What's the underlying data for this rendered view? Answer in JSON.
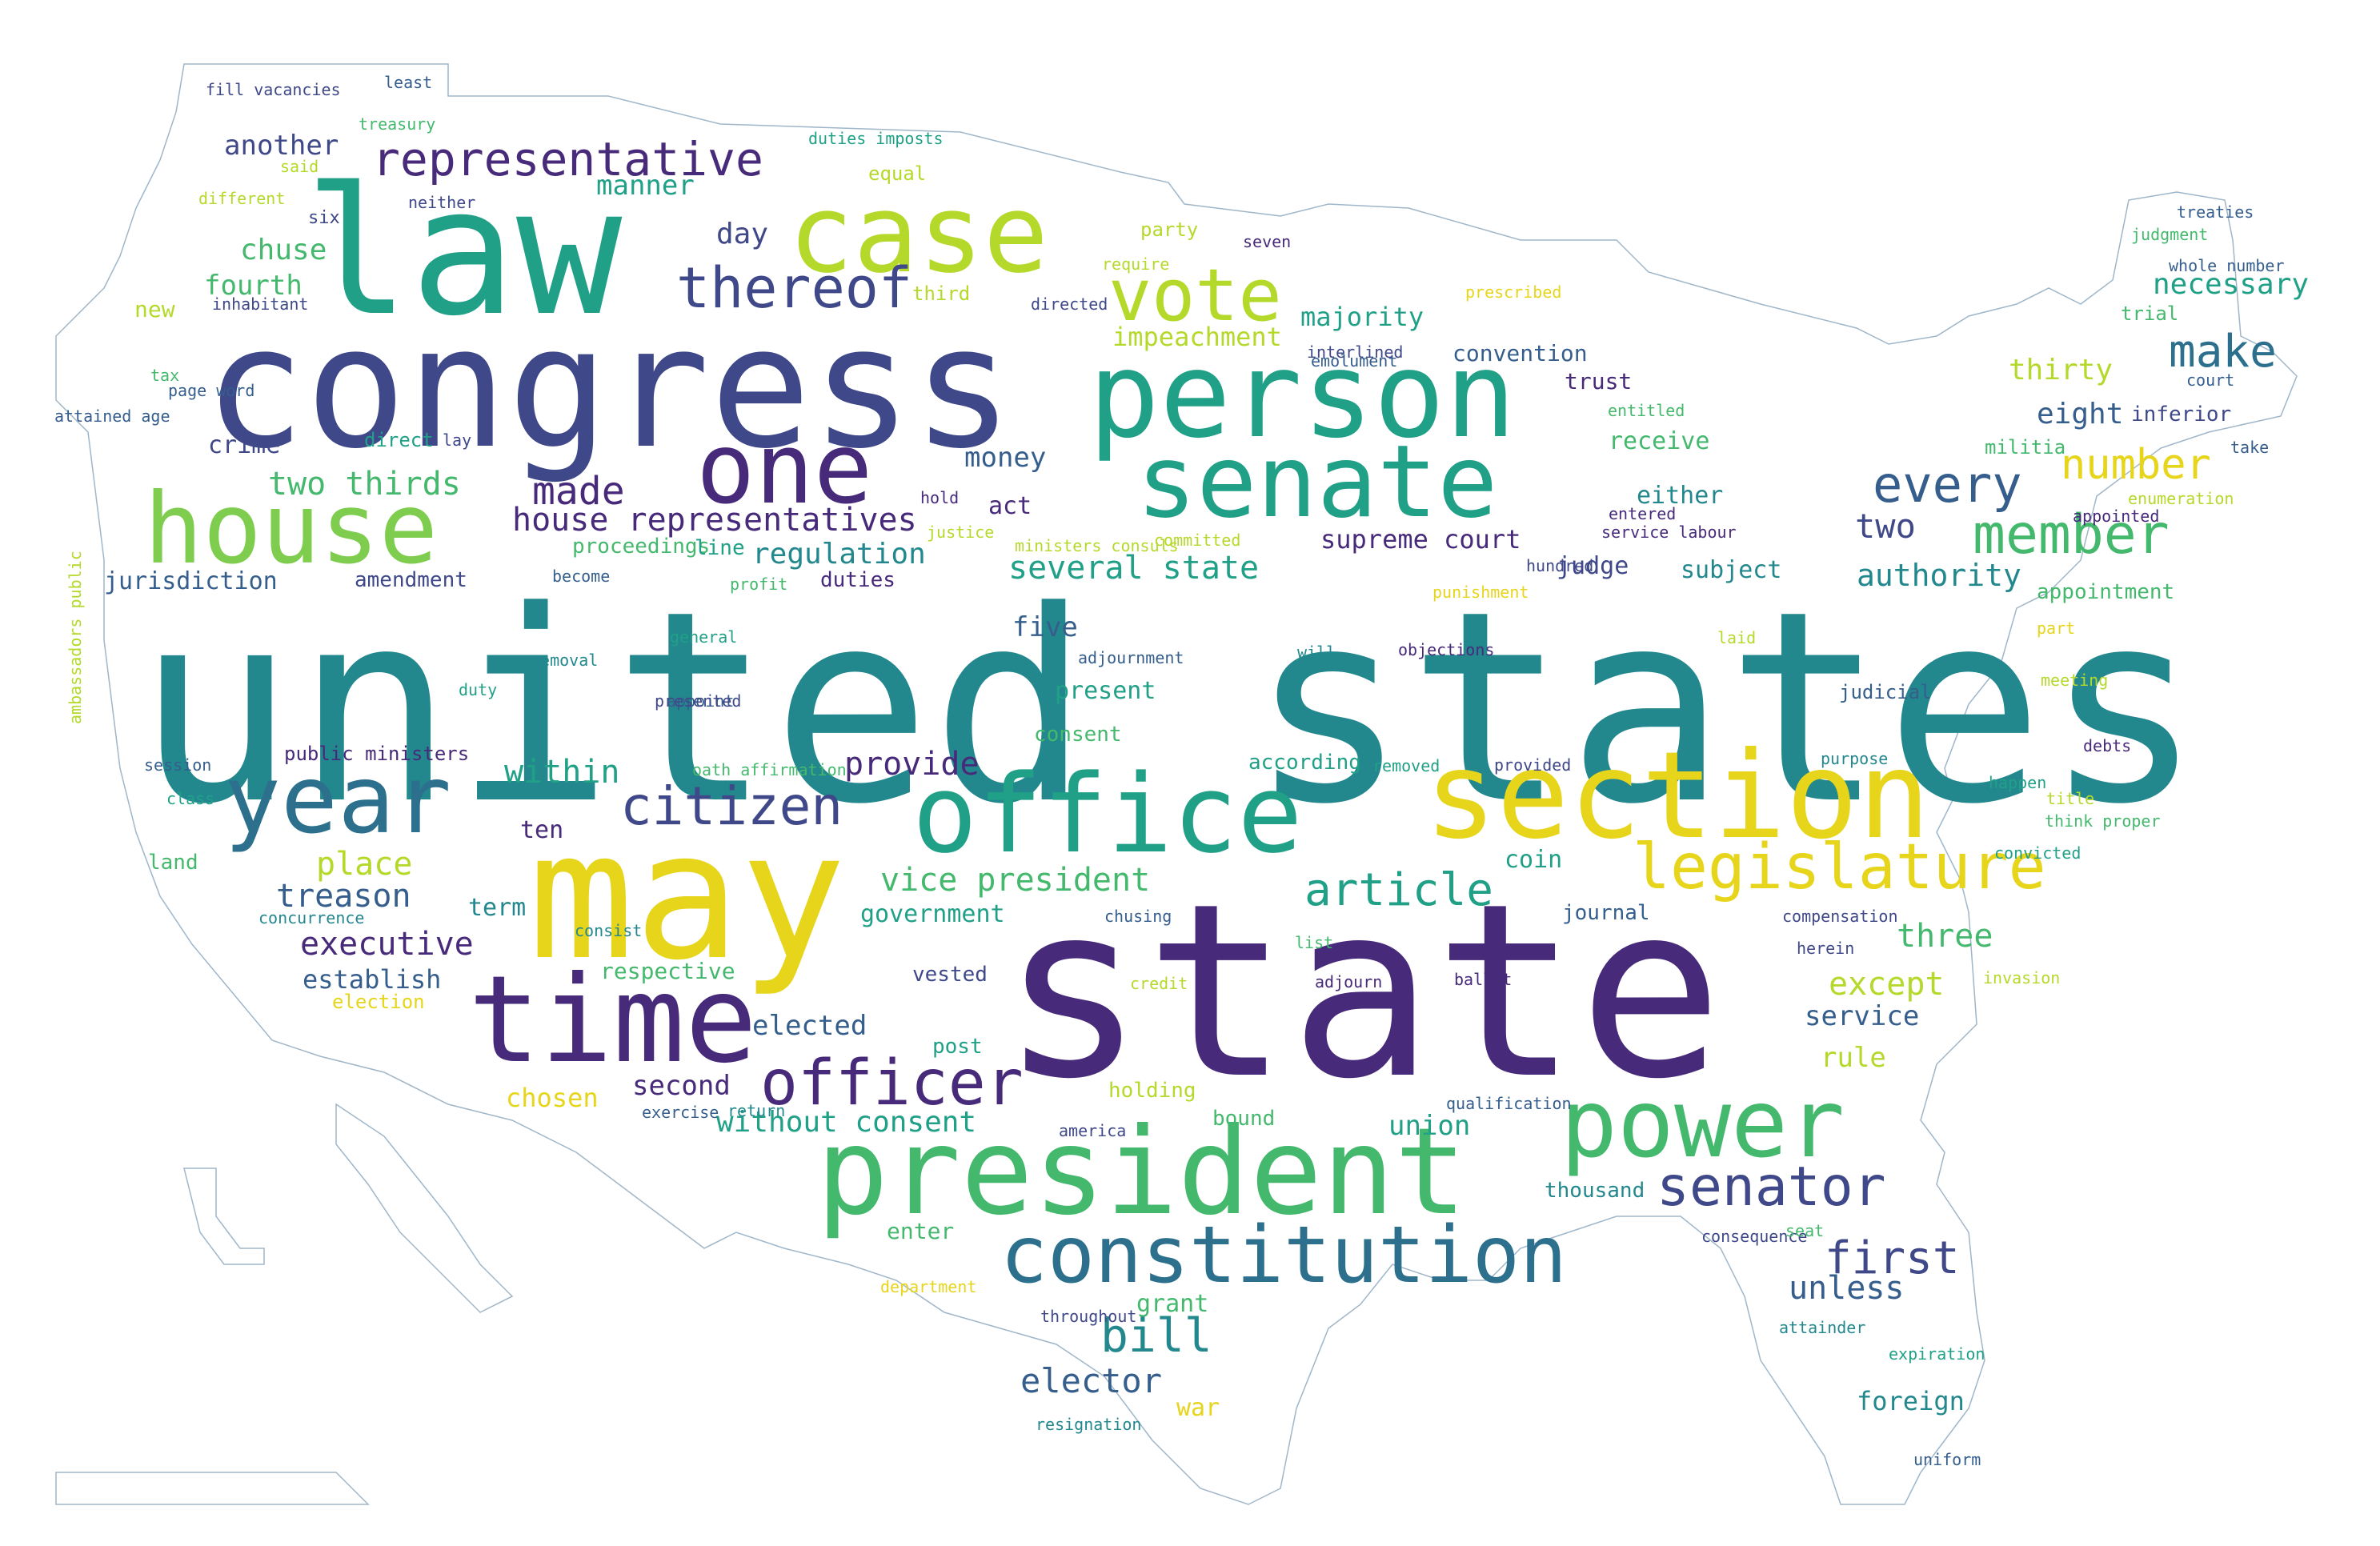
{
  "palette": {
    "yellow": "#e6d51a",
    "lime": "#b5d92b",
    "green": "#7fcd4f",
    "green2": "#44b96d",
    "teal": "#21a088",
    "teal2": "#23888e",
    "blue": "#2c708e",
    "blue2": "#355e8d",
    "indigo": "#3f4889",
    "purple": "#472a7a",
    "dark": "#440154"
  },
  "outline_color": "#9fb6c9",
  "words": [
    {
      "text": "united states",
      "color": "teal2"
    },
    {
      "text": "state",
      "color": "purple"
    },
    {
      "text": "congress",
      "color": "indigo"
    },
    {
      "text": "law",
      "color": "teal"
    },
    {
      "text": "may",
      "color": "yellow"
    },
    {
      "text": "president",
      "color": "green2"
    },
    {
      "text": "person",
      "color": "teal"
    },
    {
      "text": "section",
      "color": "yellow"
    },
    {
      "text": "office",
      "color": "teal"
    },
    {
      "text": "time",
      "color": "purple"
    },
    {
      "text": "case",
      "color": "lime"
    },
    {
      "text": "senate",
      "color": "teal"
    },
    {
      "text": "house",
      "color": "green"
    },
    {
      "text": "one",
      "color": "purple"
    },
    {
      "text": "year",
      "color": "blue"
    },
    {
      "text": "power",
      "color": "green2"
    },
    {
      "text": "constitution",
      "color": "blue"
    },
    {
      "text": "vote",
      "color": "lime"
    },
    {
      "text": "legislature",
      "color": "yellow"
    },
    {
      "text": "officer",
      "color": "purple"
    },
    {
      "text": "thereof",
      "color": "indigo"
    },
    {
      "text": "senator",
      "color": "indigo"
    },
    {
      "text": "citizen",
      "color": "indigo"
    },
    {
      "text": "member",
      "color": "green2"
    },
    {
      "text": "article",
      "color": "teal"
    },
    {
      "text": "representative",
      "color": "purple"
    },
    {
      "text": "every",
      "color": "blue2"
    },
    {
      "text": "make",
      "color": "blue"
    },
    {
      "text": "first",
      "color": "indigo"
    },
    {
      "text": "bill",
      "color": "teal2"
    },
    {
      "text": "number",
      "color": "yellow"
    },
    {
      "text": "made",
      "color": "purple"
    },
    {
      "text": "house representatives",
      "color": "purple"
    },
    {
      "text": "two thirds",
      "color": "green2"
    },
    {
      "text": "several state",
      "color": "teal"
    },
    {
      "text": "vice president",
      "color": "green2"
    },
    {
      "text": "executive",
      "color": "purple"
    },
    {
      "text": "elector",
      "color": "blue2"
    },
    {
      "text": "without consent",
      "color": "teal"
    },
    {
      "text": "impeachment",
      "color": "lime"
    },
    {
      "text": "authority",
      "color": "teal2"
    },
    {
      "text": "treason",
      "color": "blue2"
    },
    {
      "text": "place",
      "color": "lime"
    },
    {
      "text": "provide",
      "color": "purple"
    },
    {
      "text": "within",
      "color": "teal"
    },
    {
      "text": "except",
      "color": "lime"
    },
    {
      "text": "three",
      "color": "green2"
    },
    {
      "text": "unless",
      "color": "blue2"
    },
    {
      "text": "chuse",
      "color": "green2"
    },
    {
      "text": "another",
      "color": "indigo"
    },
    {
      "text": "manner",
      "color": "teal"
    },
    {
      "text": "fourth",
      "color": "green2"
    },
    {
      "text": "day",
      "color": "indigo"
    },
    {
      "text": "majority",
      "color": "teal"
    },
    {
      "text": "money",
      "color": "blue2"
    },
    {
      "text": "regulation",
      "color": "teal2"
    },
    {
      "text": "two",
      "color": "indigo"
    },
    {
      "text": "necessary",
      "color": "teal"
    },
    {
      "text": "thirty",
      "color": "lime"
    },
    {
      "text": "eight",
      "color": "blue2"
    },
    {
      "text": "five",
      "color": "blue2"
    },
    {
      "text": "elected",
      "color": "blue2"
    },
    {
      "text": "second",
      "color": "purple"
    },
    {
      "text": "chosen",
      "color": "yellow"
    },
    {
      "text": "establish",
      "color": "blue2"
    },
    {
      "text": "foreign",
      "color": "teal2"
    },
    {
      "text": "service",
      "color": "blue2"
    },
    {
      "text": "rule",
      "color": "lime"
    },
    {
      "text": "union",
      "color": "teal"
    },
    {
      "text": "supreme court",
      "color": "purple"
    },
    {
      "text": "jurisdiction",
      "color": "blue2"
    },
    {
      "text": "crime",
      "color": "indigo"
    },
    {
      "text": "act",
      "color": "purple"
    },
    {
      "text": "ten",
      "color": "purple"
    },
    {
      "text": "term",
      "color": "teal2"
    },
    {
      "text": "government",
      "color": "teal"
    },
    {
      "text": "respective",
      "color": "green2"
    },
    {
      "text": "coin",
      "color": "teal"
    },
    {
      "text": "present",
      "color": "teal"
    },
    {
      "text": "receive",
      "color": "green2"
    },
    {
      "text": "either",
      "color": "teal2"
    },
    {
      "text": "subject",
      "color": "teal2"
    },
    {
      "text": "judge",
      "color": "indigo"
    },
    {
      "text": "convention",
      "color": "blue2"
    },
    {
      "text": "trust",
      "color": "purple"
    },
    {
      "text": "proceedings",
      "color": "green2"
    },
    {
      "text": "line",
      "color": "teal"
    },
    {
      "text": "duties",
      "color": "purple"
    },
    {
      "text": "amendment",
      "color": "indigo"
    },
    {
      "text": "public ministers",
      "color": "purple"
    },
    {
      "text": "according",
      "color": "teal"
    },
    {
      "text": "consent",
      "color": "green2"
    },
    {
      "text": "appointment",
      "color": "green2"
    },
    {
      "text": "judicial",
      "color": "blue2"
    },
    {
      "text": "inferior",
      "color": "indigo"
    },
    {
      "text": "grant",
      "color": "green2"
    },
    {
      "text": "war",
      "color": "yellow"
    },
    {
      "text": "journal",
      "color": "blue2"
    },
    {
      "text": "post",
      "color": "teal"
    },
    {
      "text": "vested",
      "color": "indigo"
    },
    {
      "text": "direct",
      "color": "teal"
    },
    {
      "text": "new",
      "color": "lime"
    },
    {
      "text": "land",
      "color": "green2"
    },
    {
      "text": "thousand",
      "color": "teal2"
    },
    {
      "text": "enter",
      "color": "green2"
    },
    {
      "text": "equal",
      "color": "lime"
    },
    {
      "text": "party",
      "color": "lime"
    },
    {
      "text": "third",
      "color": "lime"
    },
    {
      "text": "militia",
      "color": "green2"
    },
    {
      "text": "trial",
      "color": "green2"
    },
    {
      "text": "holding",
      "color": "lime"
    },
    {
      "text": "bound",
      "color": "green2"
    },
    {
      "text": "election",
      "color": "yellow"
    },
    {
      "text": "six",
      "color": "indigo"
    },
    {
      "text": "fill vacancies",
      "color": "indigo"
    },
    {
      "text": "least",
      "color": "blue2"
    },
    {
      "text": "treasury",
      "color": "green2"
    },
    {
      "text": "duties imposts",
      "color": "teal"
    },
    {
      "text": "said",
      "color": "lime"
    },
    {
      "text": "different",
      "color": "lime"
    },
    {
      "text": "neither",
      "color": "indigo"
    },
    {
      "text": "inhabitant",
      "color": "indigo"
    },
    {
      "text": "tax",
      "color": "green2"
    },
    {
      "text": "page word",
      "color": "blue2"
    },
    {
      "text": "attained age",
      "color": "blue2"
    },
    {
      "text": "lay",
      "color": "indigo"
    },
    {
      "text": "ambassadors public",
      "color": "lime",
      "vertical": true
    },
    {
      "text": "hold",
      "color": "purple"
    },
    {
      "text": "justice",
      "color": "lime"
    },
    {
      "text": "profit",
      "color": "green2"
    },
    {
      "text": "become",
      "color": "blue2"
    },
    {
      "text": "removal",
      "color": "teal2"
    },
    {
      "text": "general",
      "color": "teal"
    },
    {
      "text": "duty",
      "color": "teal"
    },
    {
      "text": "appoint",
      "color": "blue2"
    },
    {
      "text": "presented",
      "color": "indigo"
    },
    {
      "text": "session",
      "color": "blue2"
    },
    {
      "text": "oath affirmation",
      "color": "green2"
    },
    {
      "text": "class",
      "color": "teal"
    },
    {
      "text": "concurrence",
      "color": "teal2"
    },
    {
      "text": "consist",
      "color": "teal2"
    },
    {
      "text": "chusing",
      "color": "blue2"
    },
    {
      "text": "exercise",
      "color": "blue2"
    },
    {
      "text": "return",
      "color": "teal2"
    },
    {
      "text": "america",
      "color": "indigo"
    },
    {
      "text": "department",
      "color": "yellow"
    },
    {
      "text": "throughout",
      "color": "indigo"
    },
    {
      "text": "resignation",
      "color": "teal2"
    },
    {
      "text": "directed",
      "color": "indigo"
    },
    {
      "text": "require",
      "color": "lime"
    },
    {
      "text": "seven",
      "color": "purple"
    },
    {
      "text": "prescribed",
      "color": "yellow"
    },
    {
      "text": "emolument",
      "color": "blue2"
    },
    {
      "text": "interlined",
      "color": "indigo"
    },
    {
      "text": "entitled",
      "color": "green2"
    },
    {
      "text": "committed",
      "color": "lime"
    },
    {
      "text": "ministers consuls",
      "color": "lime"
    },
    {
      "text": "punishment",
      "color": "yellow"
    },
    {
      "text": "adjournment",
      "color": "blue2"
    },
    {
      "text": "will",
      "color": "teal2"
    },
    {
      "text": "objections",
      "color": "purple"
    },
    {
      "text": "hundred",
      "color": "indigo"
    },
    {
      "text": "entered",
      "color": "purple"
    },
    {
      "text": "service labour",
      "color": "purple"
    },
    {
      "text": "removed",
      "color": "teal"
    },
    {
      "text": "provided",
      "color": "indigo"
    },
    {
      "text": "list",
      "color": "green2"
    },
    {
      "text": "credit",
      "color": "lime"
    },
    {
      "text": "adjourn",
      "color": "purple"
    },
    {
      "text": "ballot",
      "color": "purple"
    },
    {
      "text": "qualification",
      "color": "blue2"
    },
    {
      "text": "compensation",
      "color": "indigo"
    },
    {
      "text": "herein",
      "color": "indigo"
    },
    {
      "text": "consequence",
      "color": "indigo"
    },
    {
      "text": "seat",
      "color": "green2"
    },
    {
      "text": "attainder",
      "color": "teal2"
    },
    {
      "text": "expiration",
      "color": "teal"
    },
    {
      "text": "uniform",
      "color": "blue2"
    },
    {
      "text": "invasion",
      "color": "lime"
    },
    {
      "text": "convicted",
      "color": "teal"
    },
    {
      "text": "title",
      "color": "lime"
    },
    {
      "text": "think proper",
      "color": "green2"
    },
    {
      "text": "happen",
      "color": "teal"
    },
    {
      "text": "debts",
      "color": "purple"
    },
    {
      "text": "purpose",
      "color": "teal2"
    },
    {
      "text": "laid",
      "color": "lime"
    },
    {
      "text": "meeting",
      "color": "lime"
    },
    {
      "text": "part",
      "color": "yellow"
    },
    {
      "text": "appointed",
      "color": "purple"
    },
    {
      "text": "enumeration",
      "color": "lime"
    },
    {
      "text": "take",
      "color": "blue2"
    },
    {
      "text": "court",
      "color": "blue2"
    },
    {
      "text": "treaties",
      "color": "blue2"
    },
    {
      "text": "judgment",
      "color": "green2"
    },
    {
      "text": "whole number",
      "color": "blue2"
    }
  ]
}
